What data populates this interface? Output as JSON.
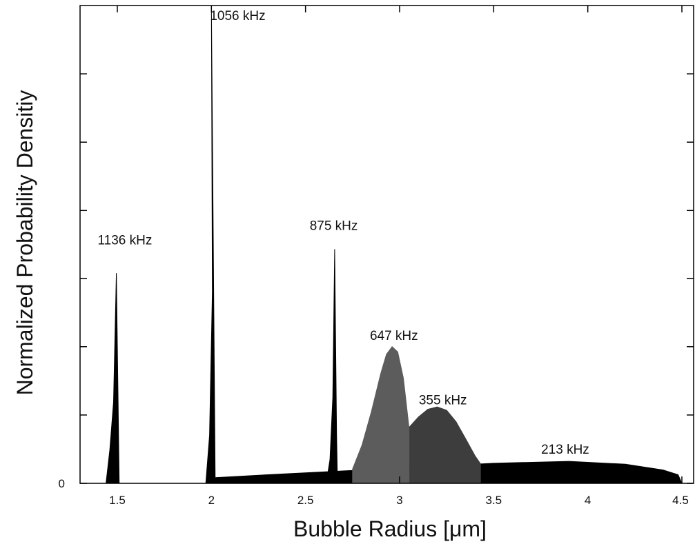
{
  "chart_data": {
    "type": "area",
    "title": "",
    "xlabel": "Bubble Radius [μm]",
    "ylabel": "Normalized Probability Densitiy",
    "xlim": [
      1.4,
      4.5
    ],
    "ylim": [
      0,
      1.0
    ],
    "x_ticks": [
      {
        "value": 1.5,
        "label": "1.5"
      },
      {
        "value": 2.0,
        "label": "2"
      },
      {
        "value": 2.5,
        "label": "2.5"
      },
      {
        "value": 3.0,
        "label": "3"
      },
      {
        "value": 3.5,
        "label": "3.5"
      },
      {
        "value": 4.0,
        "label": "4"
      },
      {
        "value": 4.5,
        "label": "4.5"
      }
    ],
    "y_ticks": [
      {
        "value": 0,
        "label": "0"
      },
      {
        "value": 0.143,
        "label": ""
      },
      {
        "value": 0.286,
        "label": ""
      },
      {
        "value": 0.429,
        "label": ""
      },
      {
        "value": 0.571,
        "label": ""
      },
      {
        "value": 0.714,
        "label": ""
      },
      {
        "value": 0.857,
        "label": ""
      }
    ],
    "grid": false,
    "legend": "none",
    "series": [
      {
        "name": "213 kHz",
        "color": "#000000",
        "points": [
          [
            2.02,
            0.012
          ],
          [
            2.3,
            0.018
          ],
          [
            2.6,
            0.024
          ],
          [
            3.0,
            0.032
          ],
          [
            3.5,
            0.042
          ],
          [
            3.9,
            0.046
          ],
          [
            4.2,
            0.04
          ],
          [
            4.4,
            0.028
          ],
          [
            4.48,
            0.018
          ],
          [
            4.5,
            0.0
          ]
        ]
      },
      {
        "name": "355 kHz",
        "color": "#3d3d3d",
        "points": [
          [
            3.05,
            0.0
          ],
          [
            3.05,
            0.117
          ],
          [
            3.1,
            0.139
          ],
          [
            3.15,
            0.155
          ],
          [
            3.2,
            0.16
          ],
          [
            3.25,
            0.153
          ],
          [
            3.3,
            0.129
          ],
          [
            3.35,
            0.094
          ],
          [
            3.4,
            0.058
          ],
          [
            3.43,
            0.041
          ],
          [
            3.43,
            0.0
          ]
        ]
      },
      {
        "name": "647 kHz",
        "color": "#5c5c5c",
        "points": [
          [
            2.75,
            0.0
          ],
          [
            2.75,
            0.03
          ],
          [
            2.8,
            0.08
          ],
          [
            2.85,
            0.15
          ],
          [
            2.9,
            0.23
          ],
          [
            2.93,
            0.27
          ],
          [
            2.96,
            0.286
          ],
          [
            2.99,
            0.275
          ],
          [
            3.02,
            0.22
          ],
          [
            3.05,
            0.117
          ],
          [
            3.05,
            0.0
          ]
        ]
      },
      {
        "name": "875 kHz",
        "color": "#000000",
        "points": [
          [
            2.61,
            0.0
          ],
          [
            2.63,
            0.05
          ],
          [
            2.645,
            0.18
          ],
          [
            2.655,
            0.49
          ],
          [
            2.665,
            0.1
          ],
          [
            2.67,
            0.0
          ]
        ]
      },
      {
        "name": "1056 kHz",
        "color": "#000000",
        "points": [
          [
            1.97,
            0.0
          ],
          [
            1.99,
            0.1
          ],
          [
            2.005,
            0.4
          ],
          [
            2.0,
            1.0
          ],
          [
            2.02,
            0.0
          ]
        ]
      },
      {
        "name": "1136 kHz",
        "color": "#000000",
        "points": [
          [
            1.44,
            0.0
          ],
          [
            1.46,
            0.07
          ],
          [
            1.48,
            0.17
          ],
          [
            1.495,
            0.44
          ],
          [
            1.51,
            0.0
          ]
        ]
      }
    ],
    "annotations": [
      {
        "text": "1136 kHz",
        "x": 1.54,
        "y": 0.5
      },
      {
        "text": "1056 kHz",
        "x": 2.14,
        "y": 0.97
      },
      {
        "text": "875 kHz",
        "x": 2.65,
        "y": 0.53
      },
      {
        "text": "647 kHz",
        "x": 2.97,
        "y": 0.3
      },
      {
        "text": "355 kHz",
        "x": 3.23,
        "y": 0.165
      },
      {
        "text": "213 kHz",
        "x": 3.88,
        "y": 0.062
      }
    ]
  }
}
